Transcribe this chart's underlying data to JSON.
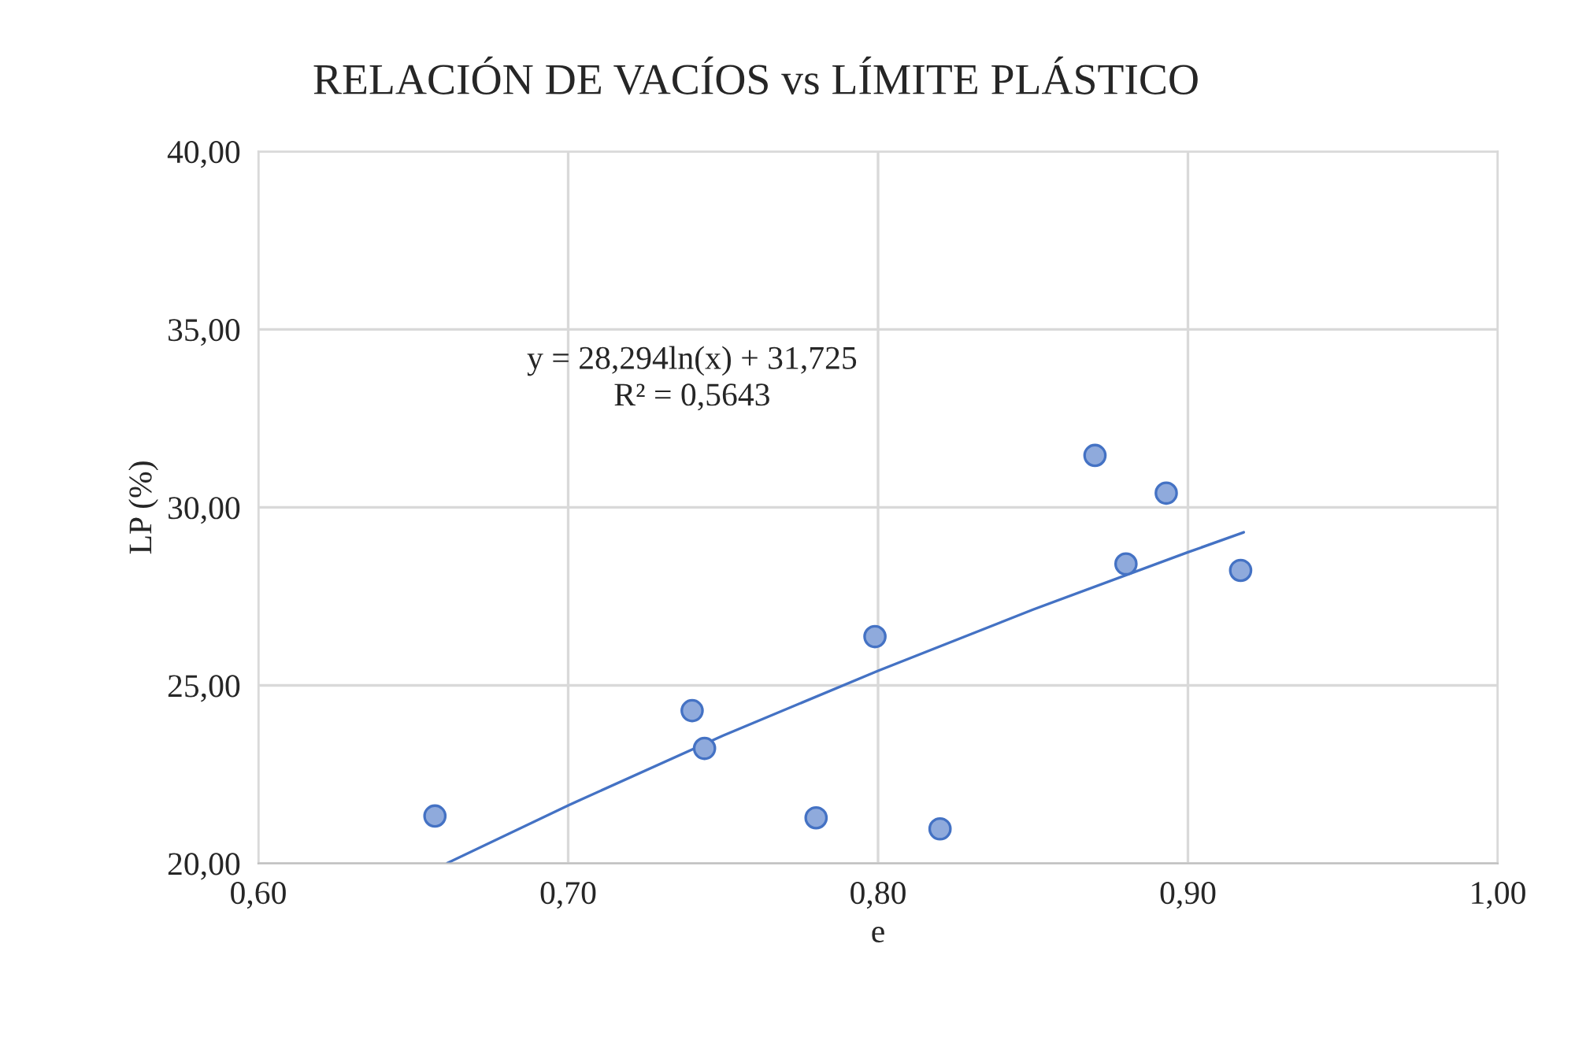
{
  "chart_data": {
    "type": "scatter",
    "title": "RELACIÓN DE VACÍOS vs LÍMITE PLÁSTICO",
    "xlabel": "e",
    "ylabel": "LP (%)",
    "series": [
      {
        "color": "#8faadc",
        "x": [
          0.657,
          0.74,
          0.744,
          0.78,
          0.799,
          0.82,
          0.87,
          0.88,
          0.893,
          0.917
        ],
        "values": [
          21.33,
          24.29,
          23.23,
          21.28,
          26.37,
          20.97,
          31.46,
          28.41,
          30.4,
          28.23
        ]
      },
      {
        "type": "line",
        "color": "#4472c4",
        "marker": "none",
        "x": [
          0.661,
          0.7,
          0.75,
          0.8,
          0.85,
          0.9,
          0.918
        ],
        "values": [
          20.01,
          21.63,
          23.59,
          25.41,
          27.13,
          28.74,
          29.3
        ]
      }
    ],
    "annotations": [
      "y = 28,294ln(x) + 31,725\nR² = 0,5643"
    ],
    "xlim": [
      0.6,
      1.0
    ],
    "xticks": [
      {
        "value": 0.6,
        "label": "0,60"
      },
      {
        "value": 0.7,
        "label": "0,70"
      },
      {
        "value": 0.8,
        "label": "0,80"
      },
      {
        "value": 0.9,
        "label": "0,90"
      },
      {
        "value": 1.0,
        "label": "1,00"
      }
    ],
    "ylim": [
      20,
      40
    ],
    "yticks": [
      {
        "value": 20,
        "label": "20,00"
      },
      {
        "value": 25,
        "label": "25,00"
      },
      {
        "value": 30,
        "label": "30,00"
      },
      {
        "value": 35,
        "label": "35,00"
      },
      {
        "value": 40,
        "label": "40,00"
      }
    ],
    "grid": true,
    "legend": false,
    "marker": "circle"
  }
}
